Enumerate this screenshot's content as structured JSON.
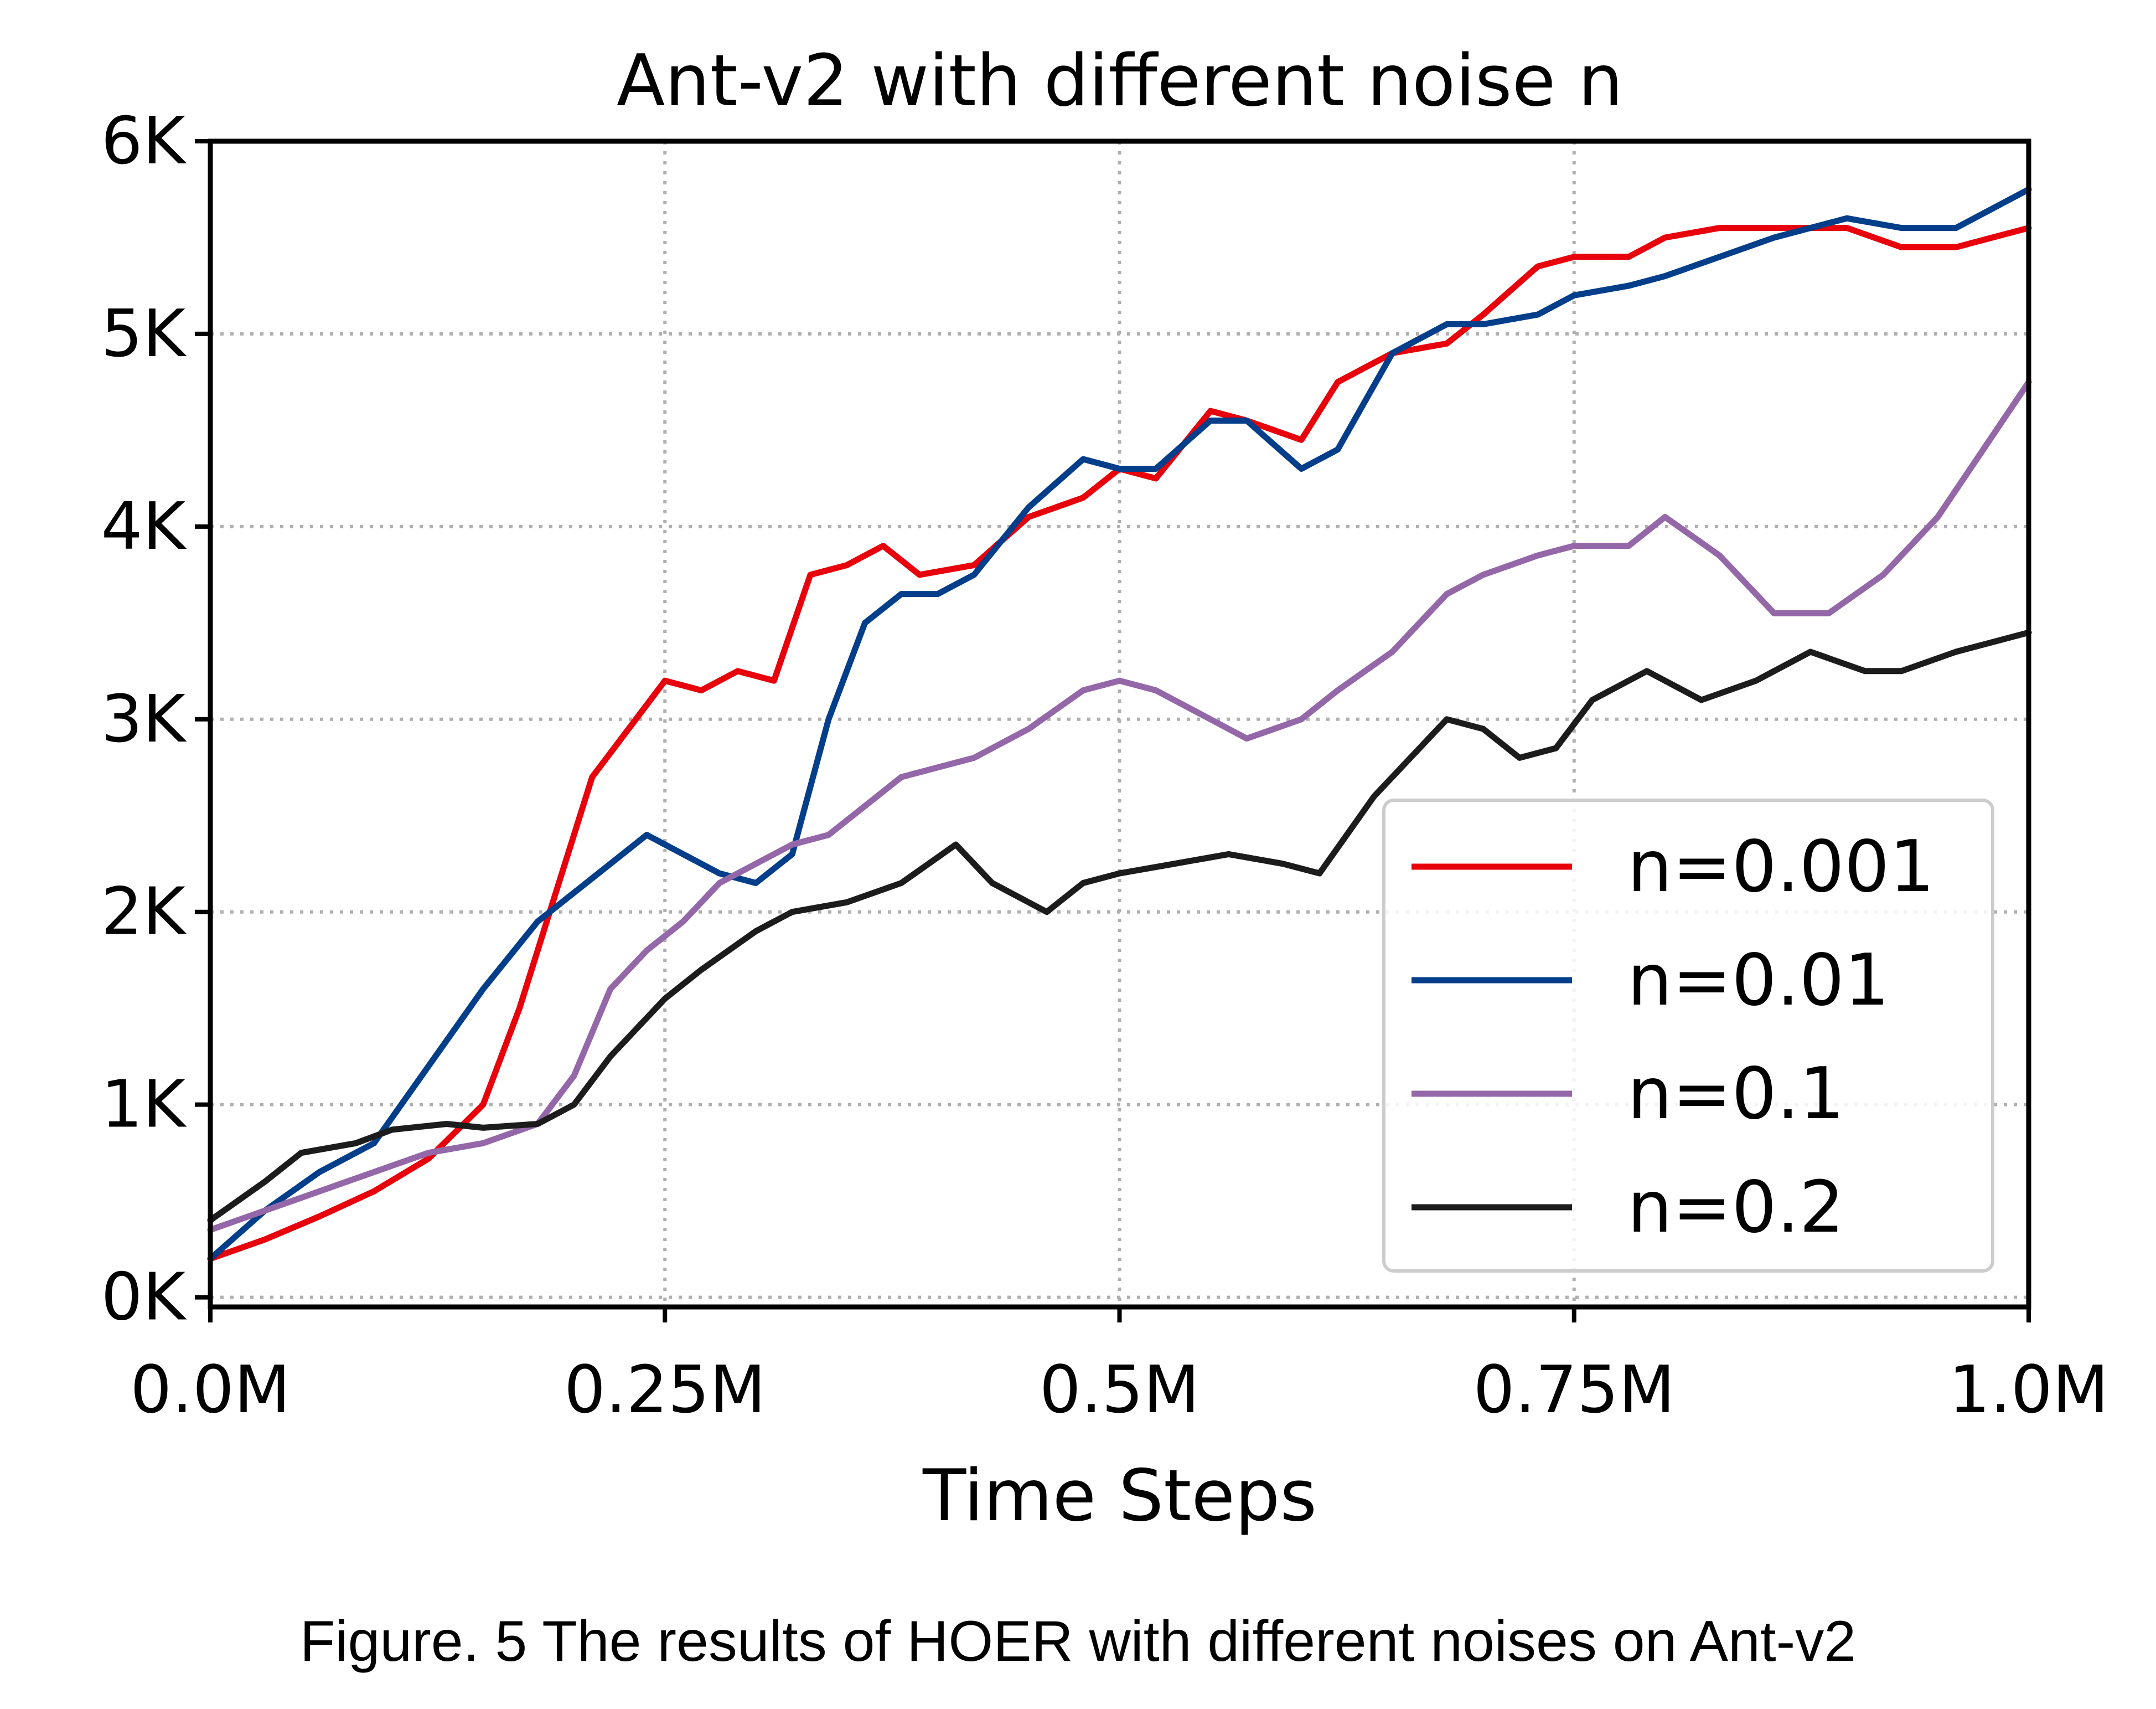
{
  "caption": "Figure. 5 The results of HOER with different noises on Ant-v2",
  "chart_data": {
    "type": "line",
    "title": "Ant-v2 with different noise n",
    "xlabel": "Time Steps",
    "ylabel": "",
    "xlim": [
      0,
      1.0
    ],
    "ylim": [
      -50,
      6000
    ],
    "x_ticks": [
      0,
      0.25,
      0.5,
      0.75,
      1.0
    ],
    "x_tick_labels": [
      "0.0M",
      "0.25M",
      "0.5M",
      "0.75M",
      "1.0M"
    ],
    "y_ticks": [
      0,
      1000,
      2000,
      3000,
      4000,
      5000,
      6000
    ],
    "y_tick_labels": [
      "0K",
      "1K",
      "2K",
      "3K",
      "4K",
      "5K",
      "6K"
    ],
    "grid": true,
    "legend_position": "lower-right",
    "series": [
      {
        "name": "n=0.001",
        "color": "#e8000b",
        "x": [
          0,
          0.03,
          0.06,
          0.09,
          0.12,
          0.15,
          0.17,
          0.19,
          0.21,
          0.23,
          0.25,
          0.27,
          0.29,
          0.31,
          0.33,
          0.35,
          0.37,
          0.39,
          0.42,
          0.45,
          0.48,
          0.5,
          0.52,
          0.55,
          0.57,
          0.6,
          0.62,
          0.65,
          0.68,
          0.7,
          0.73,
          0.75,
          0.78,
          0.8,
          0.83,
          0.86,
          0.9,
          0.93,
          0.96,
          1.0
        ],
        "y": [
          200,
          300,
          420,
          550,
          720,
          1000,
          1500,
          2100,
          2700,
          2950,
          3200,
          3150,
          3250,
          3200,
          3750,
          3800,
          3900,
          3750,
          3800,
          4050,
          4150,
          4300,
          4250,
          4600,
          4550,
          4450,
          4750,
          4900,
          4950,
          5100,
          5350,
          5400,
          5400,
          5500,
          5550,
          5550,
          5550,
          5450,
          5450,
          5550
        ]
      },
      {
        "name": "n=0.01",
        "color": "#023e8a",
        "x": [
          0,
          0.03,
          0.06,
          0.09,
          0.12,
          0.15,
          0.18,
          0.2,
          0.22,
          0.24,
          0.26,
          0.28,
          0.3,
          0.32,
          0.34,
          0.36,
          0.38,
          0.4,
          0.42,
          0.45,
          0.48,
          0.5,
          0.52,
          0.55,
          0.57,
          0.6,
          0.62,
          0.65,
          0.68,
          0.7,
          0.73,
          0.75,
          0.78,
          0.8,
          0.83,
          0.86,
          0.9,
          0.93,
          0.96,
          1.0
        ],
        "y": [
          200,
          450,
          650,
          800,
          1200,
          1600,
          1950,
          2100,
          2250,
          2400,
          2300,
          2200,
          2150,
          2300,
          3000,
          3500,
          3650,
          3650,
          3750,
          4100,
          4350,
          4300,
          4300,
          4550,
          4550,
          4300,
          4400,
          4900,
          5050,
          5050,
          5100,
          5200,
          5250,
          5300,
          5400,
          5500,
          5600,
          5550,
          5550,
          5750
        ]
      },
      {
        "name": "n=0.1",
        "color": "#9467a8",
        "x": [
          0,
          0.03,
          0.06,
          0.09,
          0.12,
          0.15,
          0.18,
          0.2,
          0.22,
          0.24,
          0.26,
          0.28,
          0.3,
          0.32,
          0.34,
          0.36,
          0.38,
          0.4,
          0.42,
          0.45,
          0.48,
          0.5,
          0.52,
          0.55,
          0.57,
          0.6,
          0.62,
          0.65,
          0.68,
          0.7,
          0.73,
          0.75,
          0.78,
          0.8,
          0.83,
          0.86,
          0.89,
          0.92,
          0.95,
          1.0
        ],
        "y": [
          350,
          450,
          550,
          650,
          750,
          800,
          900,
          1150,
          1600,
          1800,
          1950,
          2150,
          2250,
          2350,
          2400,
          2550,
          2700,
          2750,
          2800,
          2950,
          3150,
          3200,
          3150,
          3000,
          2900,
          3000,
          3150,
          3350,
          3650,
          3750,
          3850,
          3900,
          3900,
          4050,
          3850,
          3550,
          3550,
          3750,
          4050,
          4750
        ]
      },
      {
        "name": "n=0.2",
        "color": "#1c1c1c",
        "x": [
          0,
          0.03,
          0.05,
          0.08,
          0.1,
          0.13,
          0.15,
          0.18,
          0.2,
          0.22,
          0.25,
          0.27,
          0.3,
          0.32,
          0.35,
          0.38,
          0.41,
          0.43,
          0.46,
          0.48,
          0.5,
          0.53,
          0.56,
          0.59,
          0.61,
          0.64,
          0.66,
          0.68,
          0.7,
          0.72,
          0.74,
          0.76,
          0.79,
          0.82,
          0.85,
          0.88,
          0.91,
          0.93,
          0.96,
          1.0
        ],
        "y": [
          400,
          600,
          750,
          800,
          870,
          900,
          880,
          900,
          1000,
          1250,
          1550,
          1700,
          1900,
          2000,
          2050,
          2150,
          2350,
          2150,
          2000,
          2150,
          2200,
          2250,
          2300,
          2250,
          2200,
          2600,
          2800,
          3000,
          2950,
          2800,
          2850,
          3100,
          3250,
          3100,
          3200,
          3350,
          3250,
          3250,
          3350,
          3450
        ]
      }
    ]
  }
}
